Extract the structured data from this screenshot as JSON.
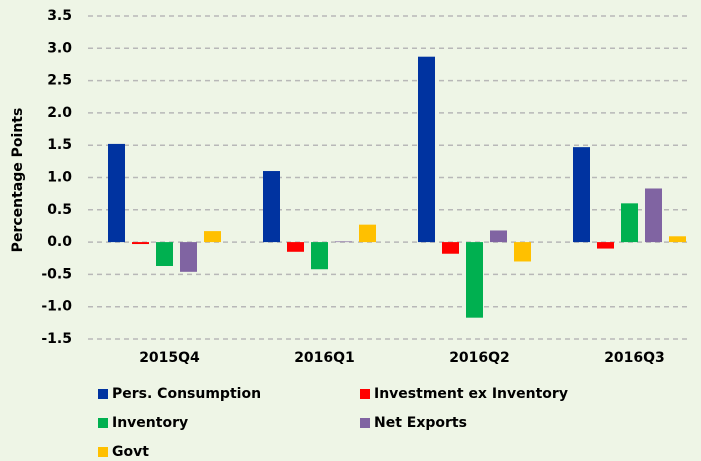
{
  "chart_data": {
    "type": "bar",
    "y_label": "Percentage Points",
    "categories": [
      "2015Q4",
      "2016Q1",
      "2016Q2",
      "2016Q3"
    ],
    "series": [
      {
        "name": "Pers. Consumption",
        "color": "#0033a0",
        "values": [
          1.52,
          1.1,
          2.87,
          1.47
        ]
      },
      {
        "name": "Investment ex Inventory",
        "color": "#ff0000",
        "values": [
          -0.03,
          -0.15,
          -0.18,
          -0.1
        ]
      },
      {
        "name": "Inventory",
        "color": "#00b050",
        "values": [
          -0.37,
          -0.42,
          -1.17,
          0.6
        ]
      },
      {
        "name": "Net Exports",
        "color": "#8064a2",
        "values": [
          -0.46,
          0.01,
          0.18,
          0.83
        ]
      },
      {
        "name": "Govt",
        "color": "#ffc000",
        "values": [
          0.17,
          0.27,
          -0.3,
          0.09
        ]
      }
    ],
    "ylim": [
      -1.5,
      3.5
    ],
    "yticks": [
      -1.5,
      {
        "value": -1,
        "label": "-1.0"
      },
      -0.5,
      {
        "value": 0,
        "label": "0.0"
      },
      0.5,
      {
        "value": 1,
        "label": "1.0"
      },
      1.5,
      {
        "value": 2,
        "label": "2.0"
      },
      2.5,
      {
        "value": 3,
        "label": "3.0"
      },
      3.5
    ],
    "grid": true
  }
}
